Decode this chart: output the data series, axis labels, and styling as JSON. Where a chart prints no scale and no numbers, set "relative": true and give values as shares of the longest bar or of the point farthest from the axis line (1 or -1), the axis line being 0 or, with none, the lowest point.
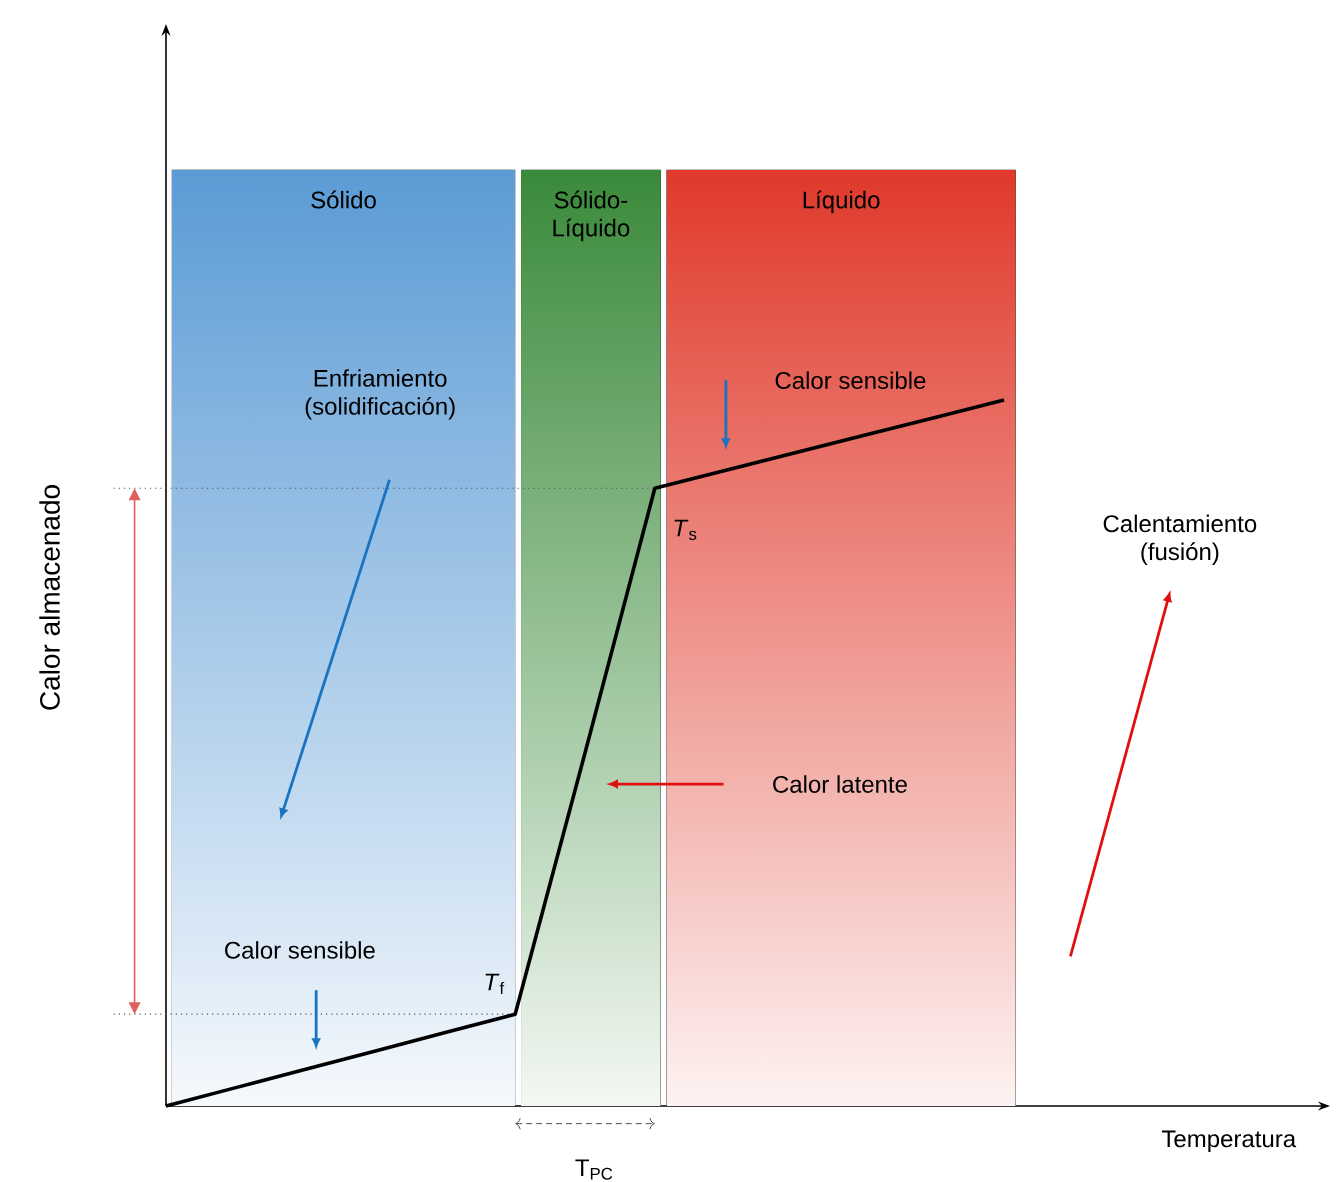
{
  "chart_data": {
    "type": "line",
    "relative": true,
    "ylabel": "Calor almacenado",
    "ref_lines": [
      {
        "axis": "y",
        "value": 0.13,
        "line_style": "dotted"
      },
      {
        "axis": "y",
        "value": 0.875,
        "line_style": "dotted"
      }
    ],
    "categories": [
      null,
      null,
      null,
      null,
      null,
      null,
      null,
      null,
      null,
      null,
      null,
      null,
      null
    ],
    "values": [
      0,
      0.026,
      0.052,
      0.078,
      0.104,
      0.13,
      0.5,
      0.875,
      0.9,
      0.925,
      0.95,
      0.975,
      1
    ],
    "color": "#000000",
    "annotations": [
      "Sólido",
      "Sólido-Líquido",
      "Líquido",
      "Enfriamiento (solidificación)",
      "Calor sensible",
      "*T*$_{f}$",
      "*T*$_{s}$",
      "Calor sensible",
      "Calor latente",
      "Calentamiento (fusión)",
      "T$_{PC}$",
      "Temperatura"
    ]
  }
}
